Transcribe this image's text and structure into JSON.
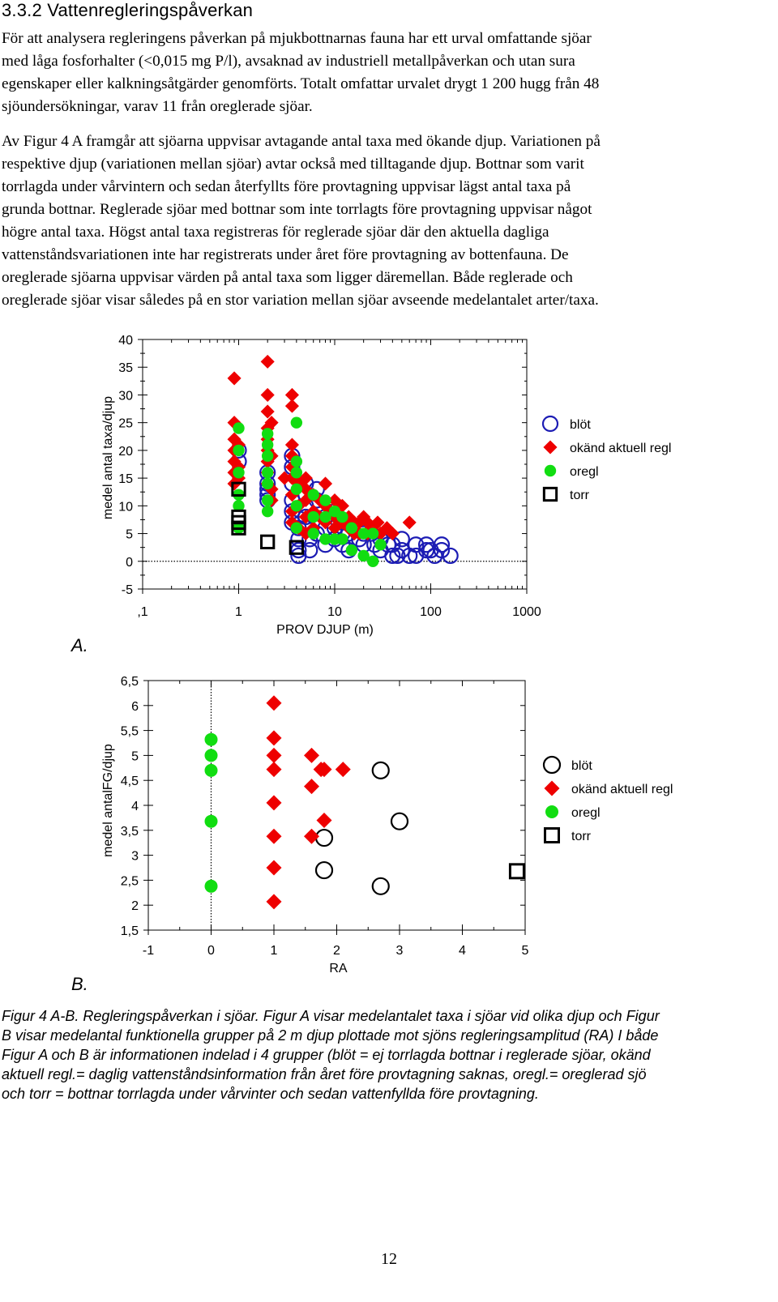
{
  "section": {
    "heading": "3.3.2 Vattenregleringspåverkan",
    "p1_lines": [
      "För att analysera regleringens påverkan på mjukbottnarnas fauna har ett urval omfattande sjöar",
      "med låga fosforhalter (<0,015 mg P/l), avsaknad av industriell metallpåverkan och utan sura",
      "egenskaper eller kalkningsåtgärder genomförts. Totalt omfattar urvalet drygt 1 200 hugg från 48",
      "sjöundersökningar, varav 11 från oreglerade sjöar."
    ],
    "p2_lines": [
      "Av Figur 4 A framgår att sjöarna uppvisar avtagande antal taxa med ökande djup. Variationen på",
      "respektive djup (variationen mellan sjöar) avtar också med tilltagande djup. Bottnar som varit",
      "torrlagda under vårvintern och sedan återfyllts före provtagning uppvisar lägst antal taxa på",
      "grunda bottnar. Reglerade sjöar med bottnar som inte torrlagts före provtagning uppvisar något",
      "högre antal taxa. Högst antal taxa registreras för reglerade sjöar där den aktuella dagliga",
      "vattenståndsvariationen inte har registrerats under året före provtagning av bottenfauna. De",
      "oreglerade sjöarna uppvisar värden på antal taxa som ligger däremellan. Både reglerade och",
      "oreglerade sjöar visar således på en stor variation mellan sjöar avseende medelantalet arter/taxa."
    ]
  },
  "figure": {
    "caption_lines": [
      "Figur 4 A-B. Regleringspåverkan i sjöar. Figur A visar medelantalet taxa i sjöar vid olika djup och Figur",
      "B visar medelantal funktionella grupper på 2 m djup plottade mot sjöns regleringsamplitud (RA) I både",
      "Figur A och B är informationen indelad i 4 grupper (blöt = ej torrlagda bottnar i reglerade sjöar, okänd",
      "aktuell regl.= daglig vattenståndsinformation från året före provtagning saknas, oregl.= oreglerad sjö",
      "och torr = bottnar torrlagda under vårvinter och sedan vattenfyllda före provtagning."
    ]
  },
  "page_number": "12",
  "colors": {
    "blot_a": "#1c1cb4",
    "blot_b": "#000000",
    "okand": "#ee0000",
    "oregl": "#11dd11",
    "torr": "#000000"
  },
  "chart_data": [
    {
      "type": "scatter",
      "panel_label": "A.",
      "title": "",
      "xlabel": "PROV DJUP (m)",
      "ylabel": "medel antal taxa/djup",
      "xscale": "log",
      "xlim": [
        0.1,
        1000
      ],
      "ylim": [
        -5,
        40
      ],
      "xtick_values": [
        0.1,
        1,
        10,
        100,
        1000
      ],
      "xtick_labels": [
        ",1",
        "1",
        "10",
        "100",
        "1000"
      ],
      "ytick_values": [
        -5,
        0,
        5,
        10,
        15,
        20,
        25,
        30,
        35,
        40
      ],
      "ytick_labels": [
        "-5",
        "0",
        "5",
        "10",
        "15",
        "20",
        "25",
        "30",
        "35",
        "40"
      ],
      "reference_line": {
        "axis": "y",
        "value": 0,
        "style": "dotted"
      },
      "legend_position": "right",
      "series": [
        {
          "name": "blöt",
          "marker": "open-circle",
          "color": "#1c1cb4",
          "x": [
            1,
            1,
            2,
            2,
            2,
            2,
            2,
            3.6,
            3.6,
            3.6,
            3.6,
            3.6,
            3.6,
            4.2,
            4.2,
            4.2,
            4.2,
            5,
            5,
            5,
            5,
            5,
            5.5,
            5.5,
            6.5,
            6.5,
            6.5,
            8,
            8,
            8,
            10,
            10,
            10,
            12,
            12,
            12,
            14,
            14,
            14,
            18,
            18,
            20,
            20,
            24,
            26,
            30,
            30,
            36,
            40,
            40,
            45,
            50,
            50,
            60,
            70,
            70,
            90,
            90,
            100,
            110,
            130,
            130,
            160
          ],
          "y": [
            18,
            20,
            16,
            14,
            13,
            12,
            11,
            19,
            17,
            14,
            11,
            9,
            7,
            6,
            4,
            2,
            1,
            14,
            12,
            10,
            8,
            6,
            4,
            2,
            13,
            11,
            5,
            8,
            6,
            3,
            9,
            6,
            4,
            7,
            5,
            3,
            7,
            5,
            2,
            6,
            4,
            5,
            3,
            5,
            3,
            4,
            2,
            3,
            3,
            1,
            1,
            4,
            2,
            1,
            3,
            1,
            3,
            2,
            2,
            1,
            3,
            2,
            1
          ]
        },
        {
          "name": "okänd aktuell regl",
          "marker": "filled-diamond",
          "color": "#ee0000",
          "x": [
            0.9,
            0.9,
            0.9,
            0.9,
            0.9,
            0.9,
            0.9,
            1,
            1,
            1,
            2,
            2,
            2,
            2,
            2,
            2,
            2,
            2,
            2,
            2.2,
            2.2,
            2.2,
            2.2,
            3,
            3.6,
            3.6,
            3.6,
            3.6,
            3.6,
            3.6,
            3.6,
            3.6,
            3.6,
            4.2,
            4.2,
            4.2,
            5,
            5,
            5,
            5,
            5,
            6,
            6,
            6,
            7,
            7,
            8,
            8,
            8,
            9,
            10,
            10,
            10,
            12,
            12,
            14,
            14,
            16,
            16,
            18,
            18,
            20,
            22,
            22,
            24,
            28,
            30,
            35,
            40,
            60
          ],
          "y": [
            33,
            25,
            22,
            20,
            18,
            16,
            14,
            21,
            17,
            15,
            36,
            30,
            27,
            24,
            22,
            20,
            18,
            16,
            14,
            25,
            19,
            13,
            11,
            15,
            30,
            28,
            21,
            19,
            17,
            15,
            12,
            9,
            7,
            14,
            10,
            6,
            15,
            13,
            11,
            8,
            5,
            12,
            9,
            6,
            11,
            8,
            14,
            10,
            7,
            9,
            11,
            8,
            6,
            10,
            7,
            8,
            6,
            7,
            5,
            7,
            5,
            8,
            7,
            5,
            6,
            7,
            5,
            6,
            5,
            7
          ]
        },
        {
          "name": "oregl",
          "marker": "filled-circle",
          "color": "#11dd11",
          "x": [
            1,
            1,
            1,
            1,
            1,
            1,
            2,
            2,
            2,
            2,
            2,
            2,
            2,
            4,
            4,
            4,
            4,
            4,
            4,
            6,
            6,
            6,
            8,
            8,
            8,
            10,
            10,
            12,
            12,
            15,
            15,
            20,
            20,
            25,
            25,
            30
          ],
          "y": [
            24,
            20,
            16,
            12,
            10,
            6,
            23,
            21,
            19,
            16,
            14,
            11,
            9,
            25,
            18,
            16,
            13,
            10,
            6,
            12,
            8,
            5,
            11,
            8,
            4,
            9,
            4,
            8,
            4,
            6,
            2,
            5,
            1,
            5,
            0,
            3
          ]
        },
        {
          "name": "torr",
          "marker": "open-square",
          "color": "#000000",
          "x": [
            1,
            1,
            1,
            1,
            2,
            4
          ],
          "y": [
            13,
            8,
            7,
            6,
            3.5,
            2.5
          ]
        }
      ]
    },
    {
      "type": "scatter",
      "panel_label": "B.",
      "title": "",
      "xlabel": "RA",
      "ylabel": "medel antalFG/djup",
      "xscale": "linear",
      "xlim": [
        -1,
        5
      ],
      "ylim": [
        1.5,
        6.5
      ],
      "xtick_values": [
        -1,
        0,
        1,
        2,
        3,
        4,
        5
      ],
      "xtick_labels": [
        "-1",
        "0",
        "1",
        "2",
        "3",
        "4",
        "5"
      ],
      "ytick_values": [
        1.5,
        2,
        2.5,
        3,
        3.5,
        4,
        4.5,
        5,
        5.5,
        6,
        6.5
      ],
      "ytick_labels": [
        "1,5",
        "2",
        "2,5",
        "3",
        "3,5",
        "4",
        "4,5",
        "5",
        "5,5",
        "6",
        "6,5"
      ],
      "reference_line": {
        "axis": "x",
        "value": 0,
        "style": "dotted"
      },
      "legend_position": "right",
      "series": [
        {
          "name": "blöt",
          "marker": "open-circle",
          "color": "#000000",
          "x": [
            2.7,
            3.0,
            1.8,
            1.8,
            2.7
          ],
          "y": [
            4.7,
            3.68,
            3.35,
            2.7,
            2.38
          ]
        },
        {
          "name": "okänd aktuell regl",
          "marker": "filled-diamond",
          "color": "#ee0000",
          "x": [
            1,
            1,
            1,
            1,
            1,
            1,
            1,
            1,
            1.6,
            1.6,
            1.6,
            1.75,
            1.8,
            2.1,
            1.8
          ],
          "y": [
            6.05,
            5.35,
            5.0,
            4.72,
            4.05,
            3.38,
            2.75,
            2.07,
            5.0,
            4.38,
            3.38,
            4.72,
            4.72,
            4.72,
            3.7
          ]
        },
        {
          "name": "oregl",
          "marker": "filled-circle",
          "color": "#11dd11",
          "x": [
            0,
            0,
            0,
            0,
            0
          ],
          "y": [
            5.32,
            5.0,
            4.7,
            3.68,
            2.38
          ]
        },
        {
          "name": "torr",
          "marker": "open-square",
          "color": "#000000",
          "x": [
            4.87
          ],
          "y": [
            2.68
          ]
        }
      ]
    }
  ]
}
